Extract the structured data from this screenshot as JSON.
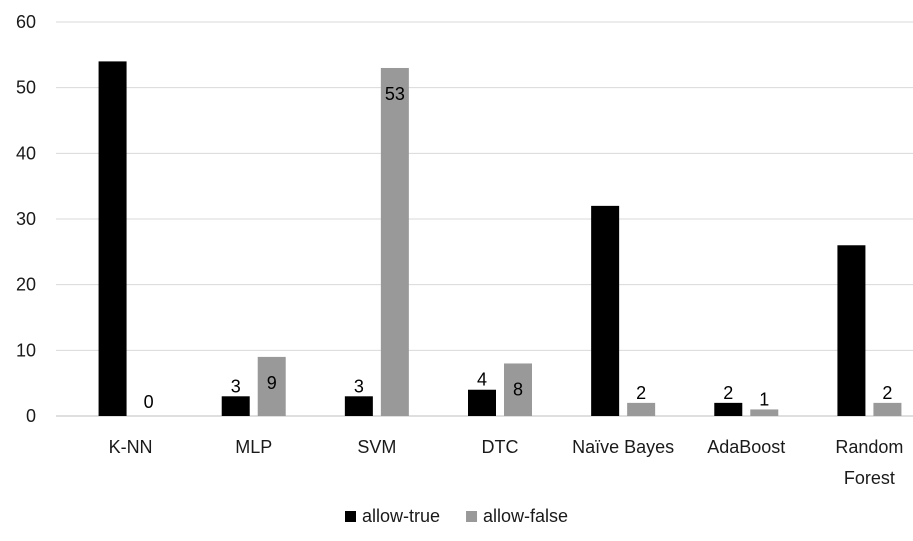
{
  "chart_data": {
    "type": "bar",
    "title": "",
    "xlabel": "",
    "ylabel": "",
    "categories": [
      [
        "K-NN"
      ],
      [
        "MLP"
      ],
      [
        "SVM"
      ],
      [
        "DTC"
      ],
      [
        "Naïve Bayes"
      ],
      [
        "AdaBoost"
      ],
      [
        "Random",
        "Forest"
      ]
    ],
    "series": [
      {
        "name": "allow-true",
        "color": "#000000",
        "values": [
          54,
          3,
          3,
          4,
          32,
          2,
          26
        ]
      },
      {
        "name": "allow-false",
        "color": "#999999",
        "values": [
          0,
          9,
          53,
          8,
          2,
          1,
          2
        ]
      }
    ],
    "ylim": [
      0,
      60
    ],
    "yticks": [
      0,
      10,
      20,
      30,
      40,
      50,
      60
    ],
    "grid": true,
    "legend": "bottom",
    "data_labels": true
  }
}
